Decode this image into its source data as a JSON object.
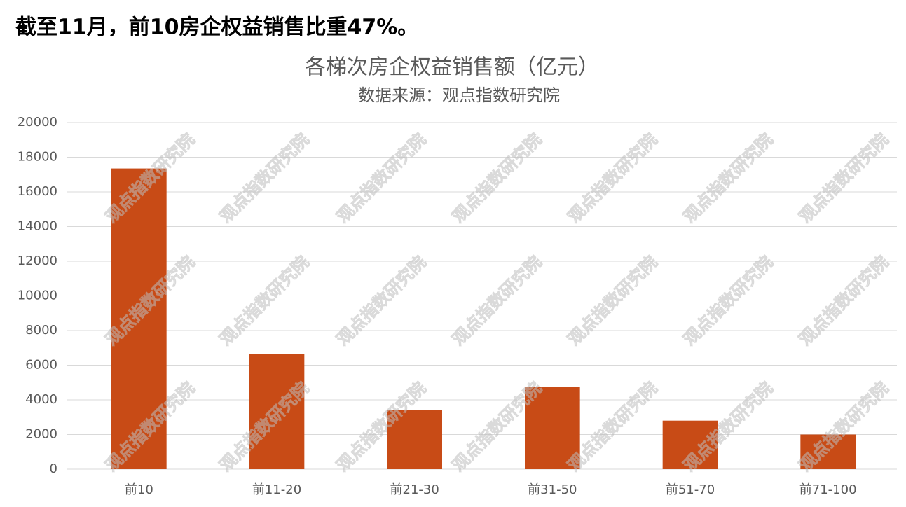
{
  "headline": "截至11月，前10房企权益销售比重47%。",
  "watermark": "观点指数研究院",
  "chart_data": {
    "type": "bar",
    "title": "各梯次房企权益销售额（亿元）",
    "subtitle": "数据来源：观点指数研究院",
    "categories": [
      "前10",
      "前11-20",
      "前21-30",
      "前31-50",
      "前51-70",
      "前71-100"
    ],
    "values": [
      17350,
      6650,
      3400,
      4750,
      2800,
      2000
    ],
    "color": "#c84b16",
    "ylim": [
      0,
      20000
    ],
    "yticks": [
      0,
      2000,
      4000,
      6000,
      8000,
      10000,
      12000,
      14000,
      16000,
      18000,
      20000
    ],
    "grid": true
  }
}
